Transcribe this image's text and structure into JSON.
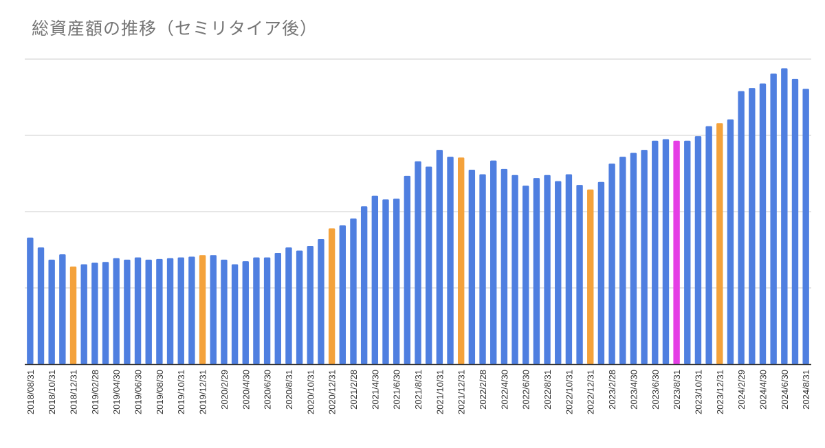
{
  "chart_data": {
    "type": "bar",
    "title": "総資産額の推移（セミリタイア後）",
    "xlabel": "",
    "ylabel": "",
    "ylim": [
      0,
      4
    ],
    "grid": true,
    "y_tick_labels_shown": false,
    "colors": {
      "default": "#4f7fe0",
      "year_end": "#f4a23b",
      "highlight": "#e53ee5",
      "grid": "#cccccc",
      "axis": "#333333",
      "label": "#333333"
    },
    "categories": [
      "2018/08/31",
      "2018/09/30",
      "2018/10/31",
      "2018/11/30",
      "2018/12/31",
      "2019/01/31",
      "2019/02/28",
      "2019/03/31",
      "2019/04/30",
      "2019/05/31",
      "2019/06/30",
      "2019/07/31",
      "2019/08/30",
      "2019/09/30",
      "2019/10/31",
      "2019/11/30",
      "2019/12/31",
      "2020/1/31",
      "2020/2/29",
      "2020/3/31",
      "2020/4/30",
      "2020/5/31",
      "2020/6/30",
      "2020/7/31",
      "2020/8/31",
      "2020/9/30",
      "2020/10/31",
      "2020/11/30",
      "2020/12/31",
      "2021/1/31",
      "2021/2/28",
      "2021/3/31",
      "2021/4/30",
      "2021/5/31",
      "2021/6/30",
      "2021/7/31",
      "2021/8/31",
      "2021/9/30",
      "2021/10/31",
      "2021/11/30",
      "2021/12/31",
      "2022/1/31",
      "2022/2/28",
      "2022/3/31",
      "2022/4/30",
      "2022/5/31",
      "2022/6/30",
      "2022/7/31",
      "2022/8/31",
      "2022/9/30",
      "2022/10/31",
      "2022/11/30",
      "2022/12/31",
      "2023/1/31",
      "2023/2/28",
      "2023/3/31",
      "2023/4/30",
      "2023/5/31",
      "2023/6/30",
      "2023/7/31",
      "2023/8/31",
      "2023/9/30",
      "2023/10/31",
      "2023/11/30",
      "2023/12/31",
      "2024/1/31",
      "2024/2/29",
      "2024/3/31",
      "2024/4/30",
      "2024/5/31",
      "2024/6/30",
      "2024/7/31",
      "2024/8/31"
    ],
    "visible_tick_labels": [
      "2018/08/31",
      "2018/10/31",
      "2018/12/31",
      "2019/02/28",
      "2019/04/30",
      "2019/06/30",
      "2019/08/30",
      "2019/10/31",
      "2019/12/31",
      "2020/2/29",
      "2020/4/30",
      "2020/6/30",
      "2020/8/31",
      "2020/10/31",
      "2020/12/31",
      "2021/2/28",
      "2021/4/30",
      "2021/6/30",
      "2021/8/31",
      "2021/10/31",
      "2021/12/31",
      "2022/2/28",
      "2022/4/30",
      "2022/6/30",
      "2022/8/31",
      "2022/10/31",
      "2022/12/31",
      "2023/2/28",
      "2023/4/30",
      "2023/6/30",
      "2023/8/31",
      "2023/10/31",
      "2023/12/31",
      "2024/2/29",
      "2024/4/30",
      "2024/6/30",
      "2024/8/31"
    ],
    "values": [
      1.66,
      1.53,
      1.37,
      1.44,
      1.28,
      1.31,
      1.33,
      1.34,
      1.39,
      1.37,
      1.4,
      1.37,
      1.38,
      1.39,
      1.4,
      1.41,
      1.43,
      1.43,
      1.37,
      1.31,
      1.35,
      1.4,
      1.4,
      1.46,
      1.53,
      1.49,
      1.55,
      1.64,
      1.78,
      1.82,
      1.91,
      2.07,
      2.21,
      2.16,
      2.17,
      2.47,
      2.66,
      2.59,
      2.81,
      2.72,
      2.71,
      2.55,
      2.49,
      2.67,
      2.56,
      2.48,
      2.34,
      2.44,
      2.48,
      2.4,
      2.49,
      2.35,
      2.29,
      2.39,
      2.63,
      2.72,
      2.77,
      2.81,
      2.93,
      2.95,
      2.93,
      2.93,
      2.99,
      3.12,
      3.16,
      3.21,
      3.58,
      3.62,
      3.68,
      3.81,
      3.88,
      3.74,
      3.61
    ],
    "bar_color_keys": [
      "default",
      "default",
      "default",
      "default",
      "year_end",
      "default",
      "default",
      "default",
      "default",
      "default",
      "default",
      "default",
      "default",
      "default",
      "default",
      "default",
      "year_end",
      "default",
      "default",
      "default",
      "default",
      "default",
      "default",
      "default",
      "default",
      "default",
      "default",
      "default",
      "year_end",
      "default",
      "default",
      "default",
      "default",
      "default",
      "default",
      "default",
      "default",
      "default",
      "default",
      "default",
      "year_end",
      "default",
      "default",
      "default",
      "default",
      "default",
      "default",
      "default",
      "default",
      "default",
      "default",
      "default",
      "year_end",
      "default",
      "default",
      "default",
      "default",
      "default",
      "default",
      "default",
      "highlight",
      "default",
      "default",
      "default",
      "year_end",
      "default",
      "default",
      "default",
      "default",
      "default",
      "default",
      "default",
      "default"
    ]
  }
}
